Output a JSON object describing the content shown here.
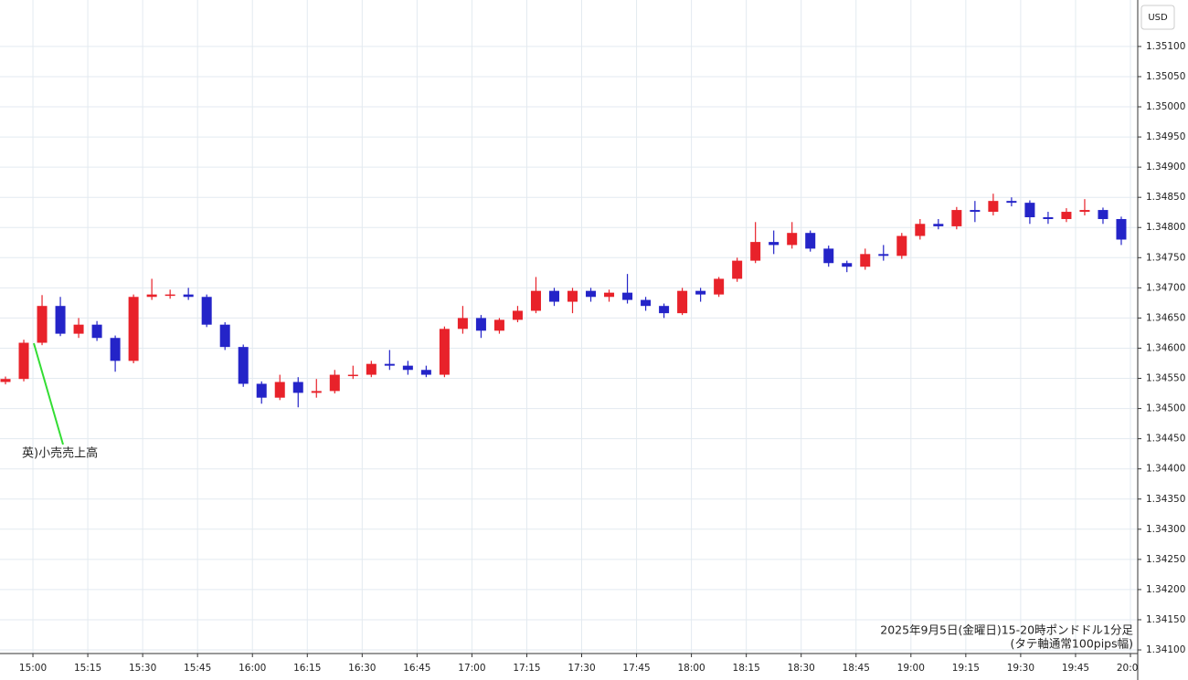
{
  "chart_data": {
    "type": "candlestick",
    "currency": "USD",
    "annotation": "英)小売売上高",
    "caption": [
      "2025年9月5日(金曜日)15-20時ポンドドル1分足",
      "(タテ軸通常100pips幅)"
    ],
    "up_color": "#e8222a",
    "down_color": "#2424c8",
    "xlim": [
      "14:51",
      "20:02"
    ],
    "xticks": [
      "15:00",
      "15:15",
      "15:30",
      "15:45",
      "16:00",
      "16:15",
      "16:30",
      "16:45",
      "17:00",
      "17:15",
      "17:30",
      "17:45",
      "18:00",
      "18:15",
      "18:30",
      "18:45",
      "19:00",
      "19:15",
      "19:30",
      "19:45",
      "20:00"
    ],
    "ylim": [
      1.34094,
      1.35177
    ],
    "yticks": [
      {
        "value": 1.341,
        "label": "1.34100"
      },
      {
        "value": 1.3415,
        "label": "1.34150"
      },
      {
        "value": 1.342,
        "label": "1.34200"
      },
      {
        "value": 1.3425,
        "label": "1.34250"
      },
      {
        "value": 1.343,
        "label": "1.34300"
      },
      {
        "value": 1.3435,
        "label": "1.34350"
      },
      {
        "value": 1.344,
        "label": "1.34400"
      },
      {
        "value": 1.3445,
        "label": "1.34450"
      },
      {
        "value": 1.345,
        "label": "1.34500"
      },
      {
        "value": 1.3455,
        "label": "1.34550"
      },
      {
        "value": 1.346,
        "label": "1.34600"
      },
      {
        "value": 1.3465,
        "label": "1.34650"
      },
      {
        "value": 1.347,
        "label": "1.34700"
      },
      {
        "value": 1.3475,
        "label": "1.34750"
      },
      {
        "value": 1.348,
        "label": "1.34800"
      },
      {
        "value": 1.3485,
        "label": "1.34850"
      },
      {
        "value": 1.349,
        "label": "1.34900"
      },
      {
        "value": 1.3495,
        "label": "1.34950"
      },
      {
        "value": 1.35,
        "label": "1.35000"
      },
      {
        "value": 1.3505,
        "label": "1.35050"
      },
      {
        "value": 1.351,
        "label": "1.35100"
      }
    ],
    "grid": true,
    "x": [
      "14:50",
      "14:55",
      "15:00",
      "15:05",
      "15:10",
      "15:15",
      "15:20",
      "15:25",
      "15:30",
      "15:35",
      "15:40",
      "15:45",
      "15:50",
      "15:55",
      "16:00",
      "16:05",
      "16:10",
      "16:15",
      "16:20",
      "16:25",
      "16:30",
      "16:35",
      "16:40",
      "16:45",
      "16:50",
      "16:55",
      "17:00",
      "17:05",
      "17:10",
      "17:15",
      "17:20",
      "17:25",
      "17:30",
      "17:35",
      "17:40",
      "17:45",
      "17:50",
      "17:55",
      "18:00",
      "18:05",
      "18:10",
      "18:15",
      "18:20",
      "18:25",
      "18:30",
      "18:35",
      "18:40",
      "18:45",
      "18:50",
      "18:55",
      "19:00",
      "19:05",
      "19:10",
      "19:15",
      "19:20",
      "19:25",
      "19:30",
      "19:35",
      "19:40",
      "19:45",
      "19:50",
      "19:55"
    ],
    "open": [
      1.34544,
      1.34549,
      1.34609,
      1.3467,
      1.34624,
      1.34639,
      1.34617,
      1.34579,
      1.34685,
      1.34689,
      1.34689,
      1.34685,
      1.34639,
      1.34602,
      1.34541,
      1.34518,
      1.34544,
      1.34526,
      1.34529,
      1.34556,
      1.34556,
      1.34574,
      1.34571,
      1.34564,
      1.34556,
      1.34632,
      1.3465,
      1.34629,
      1.34647,
      1.34662,
      1.34695,
      1.34677,
      1.34695,
      1.34685,
      1.34692,
      1.3468,
      1.3467,
      1.34658,
      1.34695,
      1.34689,
      1.34715,
      1.34745,
      1.34776,
      1.34771,
      1.34791,
      1.34765,
      1.34741,
      1.34735,
      1.34756,
      1.34753,
      1.34786,
      1.34806,
      1.34802,
      1.34829,
      1.34826,
      1.34844,
      1.34841,
      1.34817,
      1.34814,
      1.34826,
      1.34829,
      1.34814
    ],
    "high": [
      1.34553,
      1.34614,
      1.34688,
      1.34685,
      1.3465,
      1.34645,
      1.34621,
      1.34689,
      1.34715,
      1.34697,
      1.347,
      1.34689,
      1.34643,
      1.34606,
      1.34545,
      1.34556,
      1.34552,
      1.34549,
      1.34564,
      1.34571,
      1.34579,
      1.34597,
      1.34579,
      1.34571,
      1.34636,
      1.3467,
      1.34655,
      1.3465,
      1.3467,
      1.34718,
      1.347,
      1.347,
      1.347,
      1.34697,
      1.34723,
      1.34685,
      1.34674,
      1.347,
      1.347,
      1.34718,
      1.3475,
      1.34809,
      1.34795,
      1.34809,
      1.34795,
      1.3477,
      1.34745,
      1.34765,
      1.34771,
      1.34791,
      1.34814,
      1.34814,
      1.34834,
      1.34844,
      1.34856,
      1.3485,
      1.34845,
      1.34826,
      1.34832,
      1.34847,
      1.34833,
      1.34818
    ],
    "low": [
      1.3454,
      1.34545,
      1.34605,
      1.3462,
      1.34617,
      1.34612,
      1.34561,
      1.34575,
      1.3468,
      1.34682,
      1.3468,
      1.34635,
      1.34597,
      1.34536,
      1.34508,
      1.34514,
      1.34502,
      1.34518,
      1.34525,
      1.34549,
      1.34552,
      1.34564,
      1.34556,
      1.34552,
      1.34552,
      1.34624,
      1.34617,
      1.34624,
      1.34643,
      1.34658,
      1.3467,
      1.34658,
      1.34677,
      1.34677,
      1.34674,
      1.34662,
      1.3465,
      1.34655,
      1.34677,
      1.34685,
      1.3471,
      1.34741,
      1.34756,
      1.34765,
      1.3476,
      1.34735,
      1.34726,
      1.3473,
      1.34745,
      1.34748,
      1.3478,
      1.34797,
      1.34797,
      1.34809,
      1.3482,
      1.34835,
      1.34806,
      1.34806,
      1.34809,
      1.3482,
      1.34806,
      1.34771
    ],
    "close": [
      1.34549,
      1.34609,
      1.3467,
      1.34624,
      1.34639,
      1.34617,
      1.34579,
      1.34685,
      1.34689,
      1.34689,
      1.34685,
      1.34639,
      1.34602,
      1.34541,
      1.34518,
      1.34544,
      1.34526,
      1.34529,
      1.34556,
      1.34556,
      1.34574,
      1.34571,
      1.34564,
      1.34556,
      1.34632,
      1.3465,
      1.34629,
      1.34647,
      1.34662,
      1.34695,
      1.34677,
      1.34695,
      1.34685,
      1.34692,
      1.3468,
      1.3467,
      1.34658,
      1.34695,
      1.34689,
      1.34715,
      1.34745,
      1.34776,
      1.34771,
      1.34791,
      1.34765,
      1.34741,
      1.34735,
      1.34756,
      1.34753,
      1.34786,
      1.34806,
      1.34802,
      1.34829,
      1.34826,
      1.34844,
      1.34841,
      1.34817,
      1.34814,
      1.34826,
      1.34829,
      1.34814,
      1.3478
    ]
  }
}
